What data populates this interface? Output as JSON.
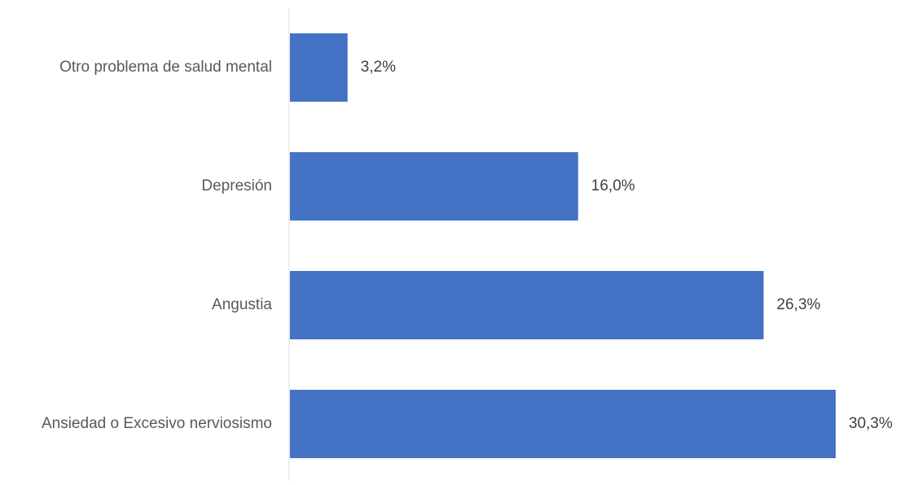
{
  "chart_data": {
    "type": "bar",
    "orientation": "horizontal",
    "categories": [
      "Otro problema de salud mental",
      "Depresión",
      "Angustia",
      "Ansiedad o Excesivo nerviosismo"
    ],
    "values": [
      3.2,
      16.0,
      26.3,
      30.3
    ],
    "value_labels": [
      "3,2%",
      "16,0%",
      "26,3%",
      "30,3%"
    ],
    "unit": "%",
    "title": "",
    "xlabel": "",
    "ylabel": "",
    "xlim": [
      0,
      30.3
    ],
    "grid": false,
    "legend": "none",
    "colors": {
      "bar": "#4472C4",
      "axis": "#D9D9D9",
      "category_text": "#595959",
      "value_text": "#404040"
    }
  }
}
